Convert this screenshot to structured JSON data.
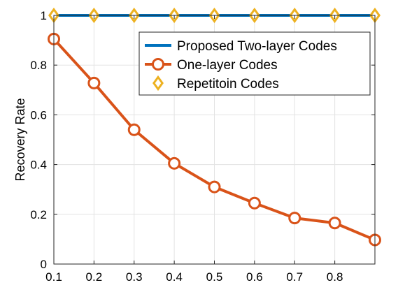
{
  "chart_data": {
    "type": "line",
    "title": "",
    "xlabel": "",
    "ylabel": "Recovery Rate",
    "x": [
      0.1,
      0.2,
      0.3,
      0.4,
      0.5,
      0.6,
      0.7,
      0.8,
      0.9
    ],
    "xlim": [
      0.1,
      0.9
    ],
    "ylim": [
      0,
      1
    ],
    "x_ticks": [
      "0.1",
      "0.2",
      "0.3",
      "0.4",
      "0.5",
      "0.6",
      "0.7",
      "0.8"
    ],
    "y_ticks": [
      "0",
      "0.2",
      "0.4",
      "0.6",
      "0.8",
      "1"
    ],
    "grid": true,
    "legend_position": "top-right",
    "series": [
      {
        "name": "Proposed Two-layer Codes",
        "values": [
          1,
          1,
          1,
          1,
          1,
          1,
          1,
          1,
          1
        ],
        "color": "#0072BD",
        "marker": "none"
      },
      {
        "name": "One-layer Codes",
        "values": [
          0.905,
          0.728,
          0.54,
          0.405,
          0.31,
          0.245,
          0.185,
          0.165,
          0.097
        ],
        "color": "#D95319",
        "marker": "circle"
      },
      {
        "name": "Repetitoin Codes",
        "values": [
          1,
          1,
          1,
          1,
          1,
          1,
          1,
          1,
          1
        ],
        "color": "#EDB120",
        "marker": "diamond"
      }
    ]
  }
}
